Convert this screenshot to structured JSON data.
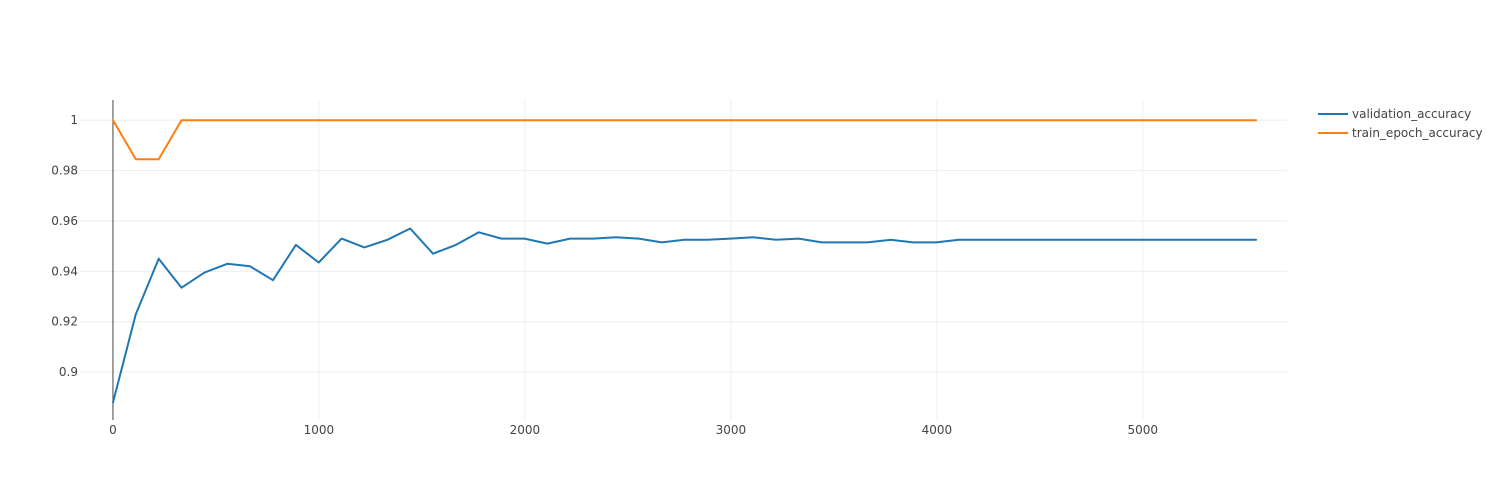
{
  "chart_data": {
    "type": "line",
    "title": "",
    "xlabel": "",
    "ylabel": "",
    "xlim": [
      -160,
      5700
    ],
    "ylim": [
      0.881,
      1.008
    ],
    "x_ticks": [
      0,
      1000,
      2000,
      3000,
      4000,
      5000
    ],
    "x_tick_labels": [
      "0",
      "1000",
      "2000",
      "3000",
      "4000",
      "5000"
    ],
    "y_ticks": [
      0.9,
      0.92,
      0.94,
      0.96,
      0.98,
      1
    ],
    "y_tick_labels": [
      "0.9",
      "0.92",
      "0.94",
      "0.96",
      "0.98",
      "1"
    ],
    "grid": true,
    "legend_position": "top-right",
    "series": [
      {
        "name": "validation_accuracy",
        "color": "#1f77b4",
        "x": [
          0,
          111,
          222,
          333,
          444,
          555,
          666,
          777,
          888,
          999,
          1110,
          1221,
          1332,
          1443,
          1554,
          1665,
          1776,
          1887,
          1998,
          2109,
          2220,
          2331,
          2442,
          2553,
          2664,
          2775,
          2886,
          2997,
          3108,
          3219,
          3330,
          3441,
          3552,
          3663,
          3774,
          3885,
          3996,
          4107,
          4218,
          4329,
          4440,
          4551,
          4662,
          4773,
          4884,
          4995,
          5106,
          5217,
          5328,
          5439,
          5550
        ],
        "y": [
          0.888,
          0.923,
          0.945,
          0.9335,
          0.9395,
          0.943,
          0.942,
          0.9365,
          0.9505,
          0.9435,
          0.953,
          0.9495,
          0.9525,
          0.957,
          0.947,
          0.9505,
          0.9555,
          0.953,
          0.953,
          0.951,
          0.953,
          0.953,
          0.9535,
          0.953,
          0.9515,
          0.9525,
          0.9525,
          0.953,
          0.9535,
          0.9525,
          0.953,
          0.9515,
          0.9515,
          0.9515,
          0.9525,
          0.9515,
          0.9515,
          0.9525,
          0.9525,
          0.9525,
          0.9525,
          0.9525,
          0.9525,
          0.9525,
          0.9525,
          0.9525,
          0.9525,
          0.9525,
          0.9525,
          0.9525,
          0.9525
        ]
      },
      {
        "name": "train_epoch_accuracy",
        "color": "#ff7f0e",
        "x": [
          0,
          111,
          222,
          333,
          444,
          555,
          666,
          777,
          888,
          999,
          1110,
          1221,
          1332,
          1443,
          1554,
          1665,
          1776,
          1887,
          1998,
          2109,
          2220,
          2331,
          2442,
          2553,
          2664,
          2775,
          2886,
          2997,
          3108,
          3219,
          3330,
          3441,
          3552,
          3663,
          3774,
          3885,
          3996,
          4107,
          4218,
          4329,
          4440,
          4551,
          4662,
          4773,
          4884,
          4995,
          5106,
          5217,
          5328,
          5439,
          5550
        ],
        "y": [
          1,
          0.9845,
          0.9845,
          1,
          1,
          1,
          1,
          1,
          1,
          1,
          1,
          1,
          1,
          1,
          1,
          1,
          1,
          1,
          1,
          1,
          1,
          1,
          1,
          1,
          1,
          1,
          1,
          1,
          1,
          1,
          1,
          1,
          1,
          1,
          1,
          1,
          1,
          1,
          1,
          1,
          1,
          1,
          1,
          1,
          1,
          1,
          1,
          1,
          1,
          1,
          1
        ]
      }
    ]
  }
}
